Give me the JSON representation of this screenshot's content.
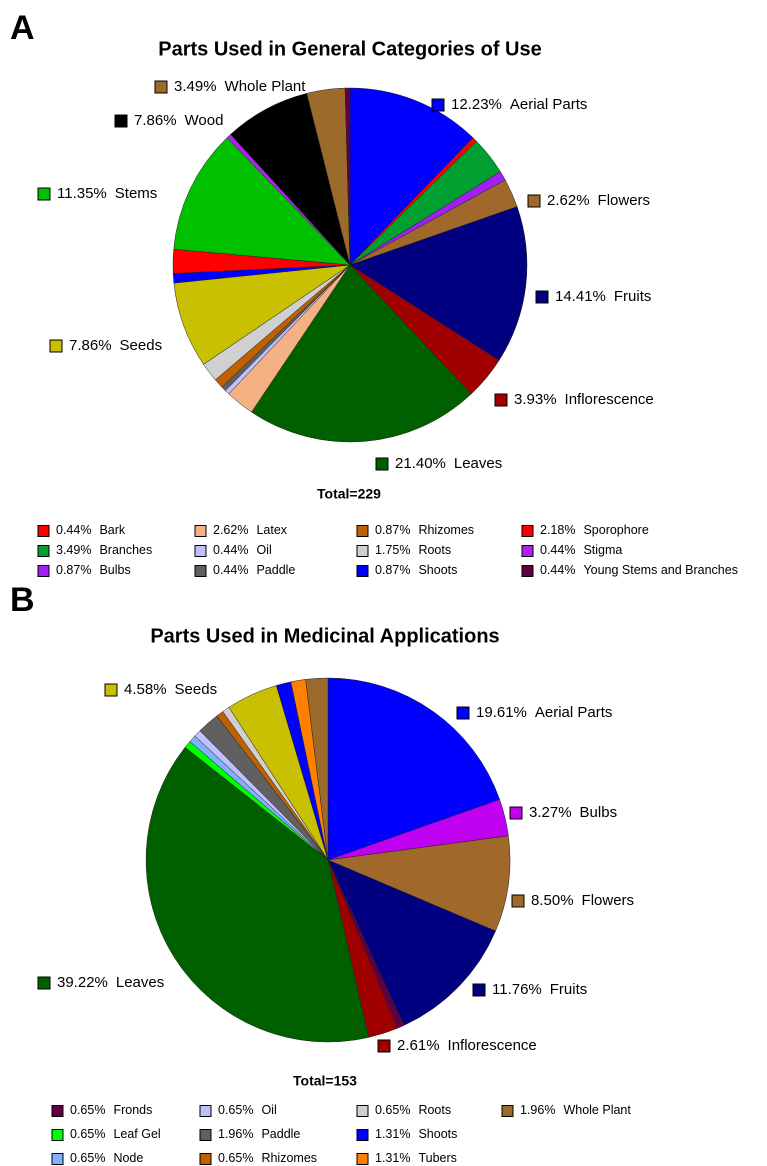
{
  "chart_data": [
    {
      "type": "pie",
      "panel": "A",
      "title": "Parts Used in General Categories of Use",
      "total": "Total=229",
      "categories": [
        "Aerial Parts",
        "Bark",
        "Branches",
        "Bulbs",
        "Flowers",
        "Fruits",
        "Inflorescence",
        "Leaves",
        "Latex",
        "Oil",
        "Paddle",
        "Rhizomes",
        "Roots",
        "Seeds",
        "Shoots",
        "Sporophore",
        "Stems",
        "Stigma",
        "Wood",
        "Whole Plant",
        "Young Stems and Branches"
      ],
      "values": [
        12.23,
        0.44,
        3.49,
        0.87,
        2.62,
        14.41,
        3.93,
        21.4,
        2.62,
        0.44,
        0.44,
        0.87,
        1.75,
        7.86,
        0.87,
        2.18,
        11.35,
        0.44,
        7.86,
        3.49,
        0.44
      ],
      "value_labels": [
        "12.23%",
        "0.44%",
        "3.49%",
        "0.87%",
        "2.62%",
        "14.41%",
        "3.93%",
        "21.40%",
        "2.62%",
        "0.44%",
        "0.44%",
        "0.87%",
        "1.75%",
        "7.86%",
        "0.87%",
        "2.18%",
        "11.35%",
        "0.44%",
        "7.86%",
        "3.49%",
        "0.44%"
      ],
      "colors": [
        "#0000ff",
        "#ff0000",
        "#00a030",
        "#a020f0",
        "#a0682a",
        "#000080",
        "#a00000",
        "#006000",
        "#f4b183",
        "#c0c0ff",
        "#606060",
        "#c06000",
        "#d0d0d0",
        "#c8c000",
        "#0000ff",
        "#ff0000",
        "#00c000",
        "#b020f0",
        "#000000",
        "#9c6a2a",
        "#600040"
      ]
    },
    {
      "type": "pie",
      "panel": "B",
      "title": "Parts Used in Medicinal Applications",
      "total": "Total=153",
      "categories": [
        "Aerial Parts",
        "Bulbs",
        "Flowers",
        "Fruits",
        "Fronds",
        "Inflorescence",
        "Leaves",
        "Leaf Gel",
        "Node",
        "Oil",
        "Paddle",
        "Rhizomes",
        "Roots",
        "Seeds",
        "Shoots",
        "Tubers",
        "Whole Plant"
      ],
      "values": [
        19.61,
        3.27,
        8.5,
        11.76,
        0.65,
        2.61,
        39.22,
        0.65,
        0.65,
        0.65,
        1.96,
        0.65,
        0.65,
        4.58,
        1.31,
        1.31,
        1.96
      ],
      "value_labels": [
        "19.61%",
        "3.27%",
        "8.50%",
        "11.76%",
        "0.65%",
        "2.61%",
        "39.22%",
        "0.65%",
        "0.65%",
        "0.65%",
        "1.96%",
        "0.65%",
        "0.65%",
        "4.58%",
        "1.31%",
        "1.31%",
        "1.96%"
      ],
      "colors": [
        "#0000ff",
        "#c000f0",
        "#a0682a",
        "#000080",
        "#600040",
        "#a00000",
        "#006000",
        "#00ff00",
        "#80b0ff",
        "#c0c0ff",
        "#606060",
        "#c06000",
        "#d0d0d0",
        "#c8c000",
        "#0000ff",
        "#ff8000",
        "#9c6a2a"
      ]
    }
  ]
}
